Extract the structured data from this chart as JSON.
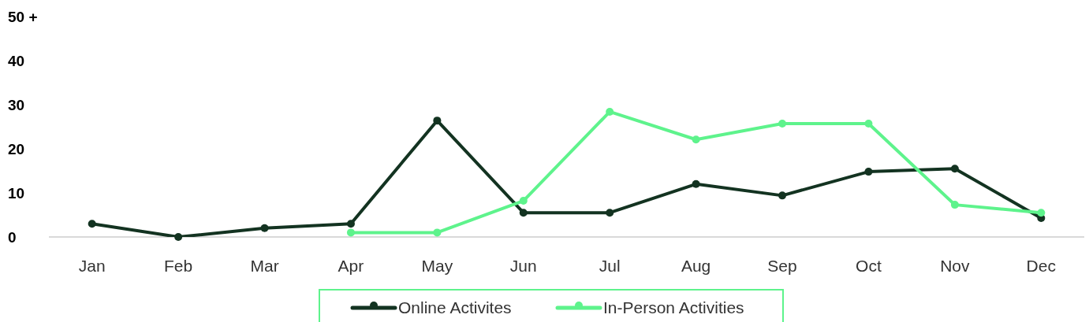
{
  "chart_data": {
    "type": "line",
    "categories": [
      "Jan",
      "Feb",
      "Mar",
      "Apr",
      "May",
      "Jun",
      "Jul",
      "Aug",
      "Sep",
      "Oct",
      "Nov",
      "Dec"
    ],
    "series": [
      {
        "name": "Online Activites",
        "color": "#133321",
        "values": [
          3,
          0,
          2,
          3,
          26.4,
          5.5,
          5.5,
          12,
          9.4,
          14.8,
          15.5,
          4.3
        ]
      },
      {
        "name": "In-Person Activities",
        "color": "#5ef38c",
        "values": [
          null,
          null,
          null,
          1,
          1,
          8.2,
          28.4,
          22.1,
          25.7,
          25.7,
          7.3,
          5.5
        ]
      }
    ],
    "ylim": [
      0,
      50
    ],
    "yticks": [
      0,
      10,
      20,
      30,
      40,
      {
        "value": 50,
        "label": "50 +"
      }
    ],
    "grid": false,
    "legend": "bottom",
    "marker": "circle",
    "line_style": "solid"
  }
}
